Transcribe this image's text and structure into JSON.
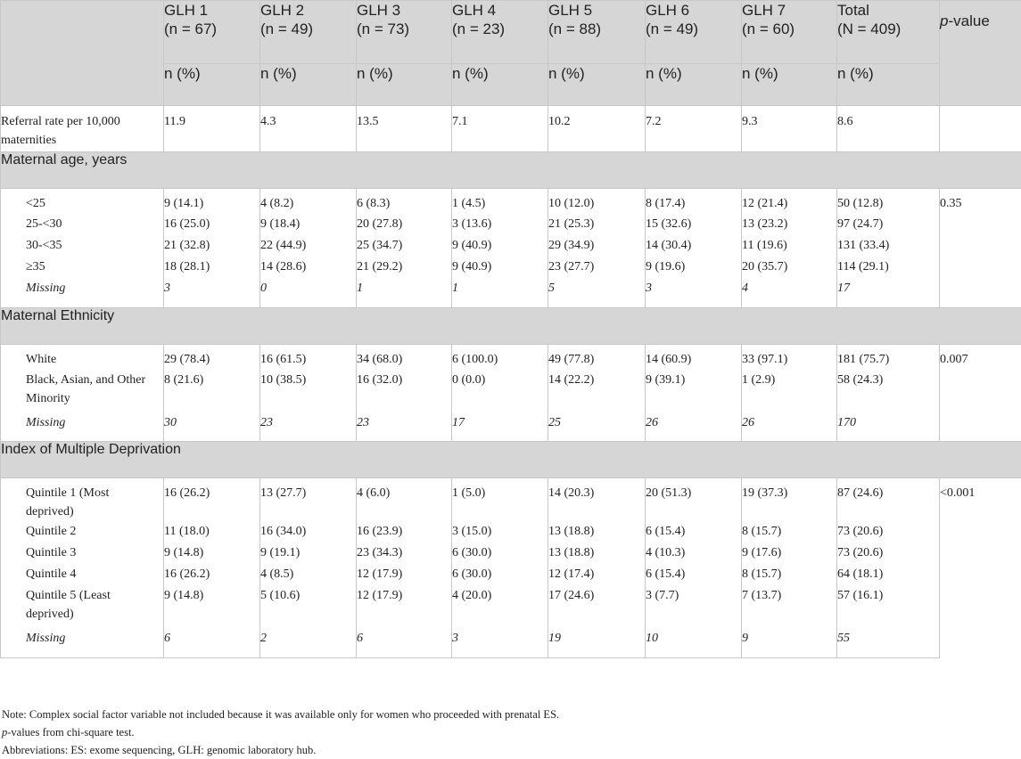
{
  "header": {
    "columns": [
      {
        "name": "GLH 1",
        "n": "(n = 67)"
      },
      {
        "name": "GLH 2",
        "n": "(n = 49)"
      },
      {
        "name": "GLH 3",
        "n": "(n = 73)"
      },
      {
        "name": "GLH 4",
        "n": "(n = 23)"
      },
      {
        "name": "GLH 5",
        "n": "(n = 88)"
      },
      {
        "name": "GLH 6",
        "n": "(n = 49)"
      },
      {
        "name": "GLH 7",
        "n": "(n = 60)"
      },
      {
        "name": "Total",
        "n": "(N = 409)"
      }
    ],
    "pvalue_italic": "p",
    "pvalue_rest": "-value",
    "unit": "n (%)"
  },
  "referral": {
    "label": "Referral rate per 10,000 maternities",
    "values": [
      "11.9",
      "4.3",
      "13.5",
      "7.1",
      "10.2",
      "7.2",
      "9.3",
      "8.6"
    ],
    "pvalue": ""
  },
  "sections": [
    {
      "title": "Maternal age, years",
      "pvalue": "0.35",
      "rows": [
        {
          "label": "<25",
          "values": [
            "9 (14.1)",
            "4 (8.2)",
            "6 (8.3)",
            "1 (4.5)",
            "10 (12.0)",
            "8 (17.4)",
            "12 (21.4)",
            "50 (12.8)"
          ]
        },
        {
          "label": "25-<30",
          "values": [
            "16 (25.0)",
            "9 (18.4)",
            "20 (27.8)",
            "3 (13.6)",
            "21 (25.3)",
            "15 (32.6)",
            "13 (23.2)",
            "97 (24.7)"
          ]
        },
        {
          "label": "30-<35",
          "values": [
            "21 (32.8)",
            "22 (44.9)",
            "25 (34.7)",
            "9 (40.9)",
            "29 (34.9)",
            "14 (30.4)",
            "11 (19.6)",
            "131 (33.4)"
          ]
        },
        {
          "label": "≥35",
          "values": [
            "18 (28.1)",
            "14 (28.6)",
            "21 (29.2)",
            "9 (40.9)",
            "23 (27.7)",
            "9 (19.6)",
            "20 (35.7)",
            "114 (29.1)"
          ]
        },
        {
          "label": "Missing",
          "missing": true,
          "values": [
            "3",
            "0",
            "1",
            "1",
            "5",
            "3",
            "4",
            "17"
          ]
        }
      ]
    },
    {
      "title": "Maternal Ethnicity",
      "pvalue": "0.007",
      "rows": [
        {
          "label": "White",
          "values": [
            "29 (78.4)",
            "16 (61.5)",
            "34 (68.0)",
            "6 (100.0)",
            "49 (77.8)",
            "14 (60.9)",
            "33 (97.1)",
            "181 (75.7)"
          ]
        },
        {
          "label": "Black, Asian, and Other Minority",
          "values": [
            "8 (21.6)",
            "10 (38.5)",
            "16 (32.0)",
            "0 (0.0)",
            "14 (22.2)",
            "9 (39.1)",
            "1 (2.9)",
            "58 (24.3)"
          ]
        },
        {
          "label": "Missing",
          "missing": true,
          "values": [
            "30",
            "23",
            "23",
            "17",
            "25",
            "26",
            "26",
            "170"
          ]
        }
      ]
    },
    {
      "title": "Index of Multiple Deprivation",
      "pvalue": "<0.001",
      "rows": [
        {
          "label": "Quintile 1 (Most deprived)",
          "values": [
            "16 (26.2)",
            "13 (27.7)",
            "4 (6.0)",
            "1 (5.0)",
            "14 (20.3)",
            "20 (51.3)",
            "19 (37.3)",
            "87 (24.6)"
          ]
        },
        {
          "label": "Quintile 2",
          "values": [
            "11 (18.0)",
            "16 (34.0)",
            "16 (23.9)",
            "3 (15.0)",
            "13 (18.8)",
            "6 (15.4)",
            "8 (15.7)",
            "73 (20.6)"
          ]
        },
        {
          "label": "Quintile 3",
          "values": [
            "9 (14.8)",
            "9 (19.1)",
            "23 (34.3)",
            "6 (30.0)",
            "13 (18.8)",
            "4 (10.3)",
            "9 (17.6)",
            "73 (20.6)"
          ]
        },
        {
          "label": "Quintile 4",
          "values": [
            "16 (26.2)",
            "4 (8.5)",
            "12 (17.9)",
            "6 (30.0)",
            "12 (17.4)",
            "6 (15.4)",
            "8 (15.7)",
            "64 (18.1)"
          ]
        },
        {
          "label": "Quintile 5 (Least deprived)",
          "values": [
            "9 (14.8)",
            "5 (10.6)",
            "12 (17.9)",
            "4 (20.0)",
            "17 (24.6)",
            "3 (7.7)",
            "7 (13.7)",
            "57 (16.1)"
          ]
        },
        {
          "label": "Missing",
          "missing": true,
          "values": [
            "6",
            "2",
            "6",
            "3",
            "19",
            "10",
            "9",
            "55"
          ]
        }
      ]
    }
  ],
  "notes": {
    "note": "Note: Complex social factor variable not included because it was available only for women who proceeded with prenatal ES.",
    "pvalues_italic": "p",
    "pvalues_rest": "-values from chi-square test.",
    "abbreviations": "Abbreviations: ES: exome sequencing, GLH: genomic laboratory hub."
  }
}
